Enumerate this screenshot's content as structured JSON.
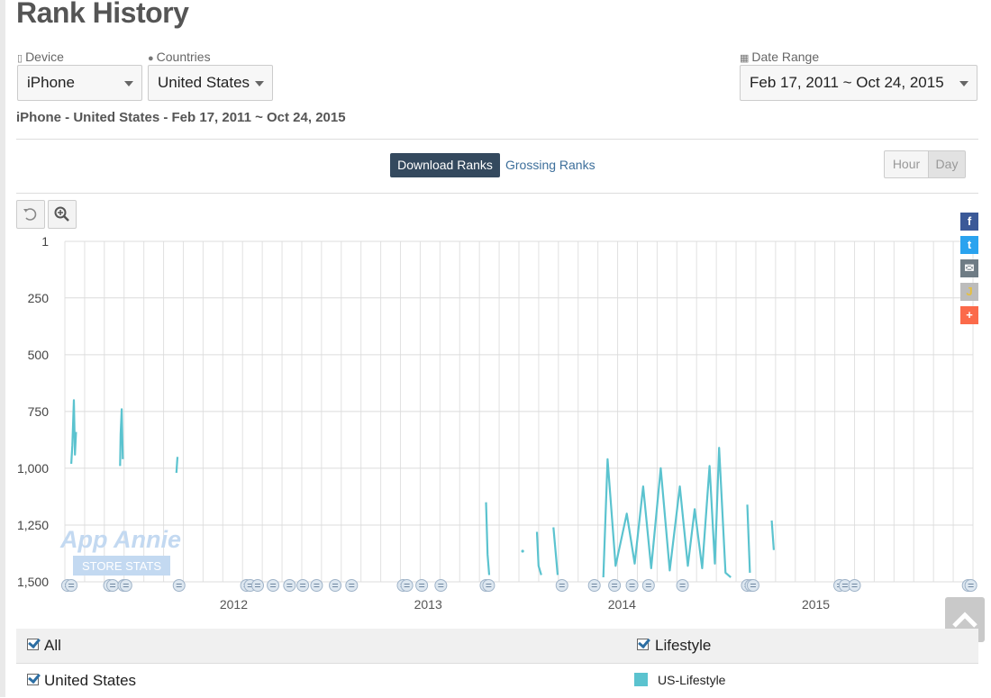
{
  "page": {
    "title": "Rank History"
  },
  "filters": {
    "device": {
      "label": "Device",
      "value": "iPhone"
    },
    "countries": {
      "label": "Countries",
      "value": "United States"
    },
    "date_range": {
      "label": "Date Range",
      "value": "Feb 17, 2011 ~ Oct 24, 2015"
    }
  },
  "subtitle": "iPhone - United States - Feb 17, 2011 ~ Oct 24, 2015",
  "tabs": {
    "download": "Download Ranks",
    "grossing": "Grossing Ranks"
  },
  "granularity": {
    "hour": "Hour",
    "day": "Day",
    "selected": "Day"
  },
  "watermark": {
    "line1": "App Annie",
    "line2": "STORE STATS"
  },
  "legend": {
    "all": "All",
    "lifestyle": "Lifestyle",
    "united_states": "United States",
    "series": "US-Lifestyle",
    "color": "#5bc3cf"
  },
  "chart_data": {
    "type": "line",
    "y_axis": {
      "reversed": true,
      "range": [
        1,
        1500
      ],
      "ticks": [
        "1",
        "250",
        "500",
        "750",
        "1,000",
        "1,250",
        "1,500"
      ]
    },
    "x_axis": {
      "ticks": [
        "2012",
        "2013",
        "2014",
        "2015"
      ],
      "range": [
        "2011-02-17",
        "2015-10-24"
      ]
    },
    "grid": true,
    "series": [
      {
        "name": "US-Lifestyle",
        "segments": [
          [
            [
              "2011-03-01",
              980
            ],
            [
              "2011-03-03",
              900
            ],
            [
              "2011-03-06",
              700
            ],
            [
              "2011-03-08",
              940
            ],
            [
              "2011-03-10",
              840
            ]
          ],
          [
            [
              "2011-06-01",
              990
            ],
            [
              "2011-06-02",
              850
            ],
            [
              "2011-06-04",
              740
            ],
            [
              "2011-06-06",
              960
            ]
          ],
          [
            [
              "2011-09-15",
              1020
            ],
            [
              "2011-09-17",
              950
            ]
          ],
          [
            [
              "2013-04-20",
              1150
            ],
            [
              "2013-04-23",
              1380
            ],
            [
              "2013-04-26",
              1470
            ]
          ],
          [
            [
              "2013-06-28",
              1365
            ]
          ],
          [
            [
              "2013-07-25",
              1280
            ],
            [
              "2013-07-28",
              1430
            ],
            [
              "2013-08-02",
              1470
            ]
          ],
          [
            [
              "2013-08-25",
              1260
            ],
            [
              "2013-09-02",
              1470
            ]
          ],
          [
            [
              "2013-11-27",
              1480
            ],
            [
              "2013-12-05",
              960
            ],
            [
              "2013-12-20",
              1430
            ],
            [
              "2014-01-10",
              1200
            ],
            [
              "2014-01-25",
              1420
            ],
            [
              "2014-02-10",
              1080
            ],
            [
              "2014-02-25",
              1440
            ],
            [
              "2014-03-15",
              1000
            ],
            [
              "2014-04-01",
              1450
            ],
            [
              "2014-04-20",
              1080
            ],
            [
              "2014-05-05",
              1430
            ],
            [
              "2014-05-18",
              1180
            ],
            [
              "2014-06-01",
              1440
            ],
            [
              "2014-06-15",
              990
            ],
            [
              "2014-06-25",
              1420
            ],
            [
              "2014-07-03",
              910
            ],
            [
              "2014-07-15",
              1460
            ],
            [
              "2014-07-25",
              1480
            ]
          ],
          [
            [
              "2014-08-25",
              1160
            ],
            [
              "2014-08-30",
              1460
            ]
          ],
          [
            [
              "2014-10-10",
              1230
            ],
            [
              "2014-10-14",
              1360
            ]
          ]
        ]
      }
    ],
    "annotation_dates": [
      "2011-02-22",
      "2011-03-01",
      "2011-05-12",
      "2011-05-18",
      "2011-06-08",
      "2011-06-12",
      "2011-09-20",
      "2012-01-25",
      "2012-02-01",
      "2012-02-15",
      "2012-03-15",
      "2012-04-15",
      "2012-05-10",
      "2012-06-05",
      "2012-07-10",
      "2012-08-10",
      "2012-11-15",
      "2012-11-22",
      "2012-12-20",
      "2013-01-25",
      "2013-04-20",
      "2013-04-25",
      "2013-09-10",
      "2013-11-10",
      "2013-12-18",
      "2014-01-20",
      "2014-02-20",
      "2014-04-25",
      "2014-08-25",
      "2014-09-01",
      "2014-09-05",
      "2015-02-15",
      "2015-02-25",
      "2015-03-15",
      "2015-10-15",
      "2015-10-20"
    ]
  }
}
